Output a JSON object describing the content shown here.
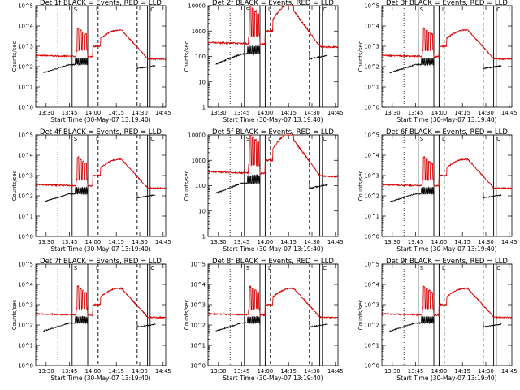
{
  "colors": {
    "events": "#000000",
    "lld": "#d40000"
  },
  "chart_data": [
    {
      "type": "line",
      "title": "Det 1f BLACK = Events, RED = LLD",
      "xlabel": "Start Time (30-May-07 13:19:40)",
      "ylabel": "Counts/sec",
      "x_ticks": [
        "13:30",
        "13:45",
        "14:00",
        "14:15",
        "14:30",
        "14:45"
      ],
      "y_ticks": [
        "10^0",
        "10^1",
        "10^2",
        "10^3",
        "10^4",
        "10^5"
      ],
      "y_scale": "log",
      "ylim": [
        1,
        100000
      ],
      "series": [
        {
          "name": "Events",
          "color": "#000000"
        },
        {
          "name": "LLD",
          "color": "#d40000"
        }
      ],
      "annotations": [
        "S",
        "L",
        "C"
      ]
    },
    {
      "type": "line",
      "title": "Det 2f BLACK = Events, RED = LLD",
      "xlabel": "Start Time (30-May-07 13:19:40)",
      "ylabel": "Counts/sec",
      "x_ticks": [
        "13:30",
        "13:45",
        "14:00",
        "14:15",
        "14:30",
        "14:45"
      ],
      "y_ticks": [
        "1",
        "10",
        "100",
        "1000",
        "10000"
      ],
      "y_scale": "log",
      "ylim": [
        1,
        10000
      ],
      "series": [
        {
          "name": "Events",
          "color": "#000000"
        },
        {
          "name": "LLD",
          "color": "#d40000"
        }
      ],
      "annotations": [
        "S",
        "L",
        "C"
      ]
    },
    {
      "type": "line",
      "title": "Det 3f BLACK = Events, RED = LLD",
      "xlabel": "Start Time (30-May-07 13:19:40)",
      "ylabel": "Counts/sec",
      "x_ticks": [
        "13:30",
        "13:45",
        "14:00",
        "14:15",
        "14:30",
        "14:45"
      ],
      "y_ticks": [
        "10^0",
        "10^1",
        "10^2",
        "10^3",
        "10^4",
        "10^5"
      ],
      "y_scale": "log",
      "ylim": [
        1,
        100000
      ],
      "series": [
        {
          "name": "Events",
          "color": "#000000"
        },
        {
          "name": "LLD",
          "color": "#d40000"
        }
      ],
      "annotations": [
        "S",
        "L",
        "C"
      ]
    },
    {
      "type": "line",
      "title": "Det 4f BLACK = Events, RED = LLD",
      "xlabel": "Start Time (30-May-07 13:19:40)",
      "ylabel": "Counts/sec",
      "x_ticks": [
        "13:30",
        "13:45",
        "14:00",
        "14:15",
        "14:30",
        "14:45"
      ],
      "y_ticks": [
        "10^0",
        "10^1",
        "10^2",
        "10^3",
        "10^4",
        "10^5"
      ],
      "y_scale": "log",
      "ylim": [
        1,
        100000
      ],
      "series": [
        {
          "name": "Events",
          "color": "#000000"
        },
        {
          "name": "LLD",
          "color": "#d40000"
        }
      ],
      "annotations": [
        "S",
        "L",
        "C"
      ]
    },
    {
      "type": "line",
      "title": "Det 5f BLACK = Events, RED = LLD",
      "xlabel": "Start Time (30-May-07 13:19:40)",
      "ylabel": "Counts/sec",
      "x_ticks": [
        "13:30",
        "13:45",
        "14:00",
        "14:15",
        "14:30",
        "14:45"
      ],
      "y_ticks": [
        "1",
        "10",
        "100",
        "1000",
        "10000"
      ],
      "y_scale": "log",
      "ylim": [
        1,
        10000
      ],
      "series": [
        {
          "name": "Events",
          "color": "#000000"
        },
        {
          "name": "LLD",
          "color": "#d40000"
        }
      ],
      "annotations": [
        "S",
        "L",
        "C"
      ]
    },
    {
      "type": "line",
      "title": "Det 6f BLACK = Events, RED = LLD",
      "xlabel": "Start Time (30-May-07 13:19:40)",
      "ylabel": "Counts/sec",
      "x_ticks": [
        "13:30",
        "13:45",
        "14:00",
        "14:15",
        "14:30",
        "14:45"
      ],
      "y_ticks": [
        "10^0",
        "10^1",
        "10^2",
        "10^3",
        "10^4",
        "10^5"
      ],
      "y_scale": "log",
      "ylim": [
        1,
        100000
      ],
      "series": [
        {
          "name": "Events",
          "color": "#000000"
        },
        {
          "name": "LLD",
          "color": "#d40000"
        }
      ],
      "annotations": [
        "S",
        "L",
        "C"
      ]
    },
    {
      "type": "line",
      "title": "Det 7f BLACK = Events, RED = LLD",
      "xlabel": "Start Time (30-May-07 13:19:40)",
      "ylabel": "Counts/sec",
      "x_ticks": [
        "13:30",
        "13:45",
        "14:00",
        "14:15",
        "14:30",
        "14:45"
      ],
      "y_ticks": [
        "10^0",
        "10^1",
        "10^2",
        "10^3",
        "10^4",
        "10^5"
      ],
      "y_scale": "log",
      "ylim": [
        1,
        100000
      ],
      "series": [
        {
          "name": "Events",
          "color": "#000000"
        },
        {
          "name": "LLD",
          "color": "#d40000"
        }
      ],
      "annotations": [
        "S",
        "L",
        "C"
      ]
    },
    {
      "type": "line",
      "title": "Det 8f BLACK = Events, RED = LLD",
      "xlabel": "Start Time (30-May-07 13:19:40)",
      "ylabel": "Counts/sec",
      "x_ticks": [
        "13:30",
        "13:45",
        "14:00",
        "14:15",
        "14:30",
        "14:45"
      ],
      "y_ticks": [
        "10^0",
        "10^1",
        "10^2",
        "10^3",
        "10^4",
        "10^5"
      ],
      "y_scale": "log",
      "ylim": [
        1,
        100000
      ],
      "series": [
        {
          "name": "Events",
          "color": "#000000"
        },
        {
          "name": "LLD",
          "color": "#d40000"
        }
      ],
      "annotations": [
        "S",
        "L",
        "C"
      ]
    },
    {
      "type": "line",
      "title": "Det 9f BLACK = Events, RED = LLD",
      "xlabel": "Start Time (30-May-07 13:19:40)",
      "ylabel": "Counts/sec",
      "x_ticks": [
        "13:30",
        "13:45",
        "14:00",
        "14:15",
        "14:30",
        "14:45"
      ],
      "y_ticks": [
        "10^0",
        "10^1",
        "10^2",
        "10^3",
        "10^4",
        "10^5"
      ],
      "y_scale": "log",
      "ylim": [
        1,
        100000
      ],
      "series": [
        {
          "name": "Events",
          "color": "#000000"
        },
        {
          "name": "LLD",
          "color": "#d40000"
        }
      ],
      "annotations": [
        "S",
        "L",
        "C"
      ]
    }
  ]
}
